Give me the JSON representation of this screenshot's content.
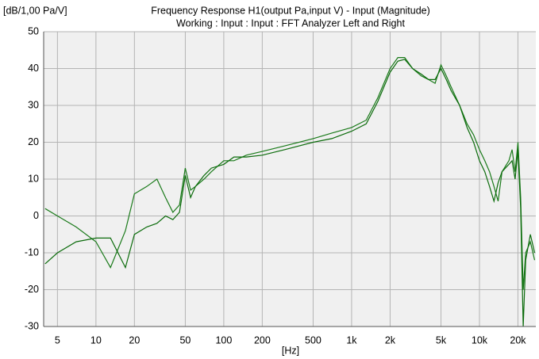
{
  "chart_data": {
    "type": "line",
    "title": "Frequency Response H1(output Pa,input V) - Input (Magnitude)",
    "subtitle": "Working : Input : Input : FFT Analyzer Left and Right",
    "y_label": "[dB/1,00 Pa/V]",
    "x_label": "[Hz]",
    "x_scale": "log",
    "grid": true,
    "xlim": [
      3.9,
      27600
    ],
    "ylim": [
      -30,
      50
    ],
    "xticks": [
      5,
      10,
      20,
      50,
      100,
      200,
      500,
      {
        "value": 1000,
        "label": "1k"
      },
      {
        "value": 2000,
        "label": "2k"
      },
      {
        "value": 5000,
        "label": "5k"
      },
      {
        "value": 10000,
        "label": "10k"
      },
      {
        "value": 20000,
        "label": "20k"
      }
    ],
    "yticks": [
      50,
      40,
      30,
      20,
      10,
      0,
      -10,
      -20,
      -30
    ],
    "x": [
      4,
      5,
      7,
      10,
      13,
      17,
      20,
      25,
      30,
      35,
      40,
      45,
      50,
      55,
      60,
      70,
      80,
      100,
      120,
      150,
      200,
      300,
      500,
      700,
      1000,
      1300,
      1600,
      2000,
      2300,
      2600,
      3000,
      3500,
      4000,
      4500,
      5000,
      5500,
      6000,
      7000,
      8000,
      9000,
      10000,
      11000,
      12000,
      13000,
      14000,
      15000,
      17000,
      18000,
      19000,
      20000,
      21000,
      22000,
      23000,
      25000,
      27000
    ],
    "series": [
      {
        "color": "#1a7a1a",
        "values": [
          2,
          0,
          -3,
          -7,
          -14,
          -4,
          6,
          8,
          10,
          5,
          1,
          3,
          13,
          7,
          8,
          10,
          12,
          15,
          15,
          16.5,
          17.5,
          19,
          21,
          22.5,
          24,
          26,
          32,
          40,
          43,
          43,
          40,
          38,
          37,
          36,
          41,
          38,
          35,
          30,
          25,
          22,
          18,
          15,
          12,
          8,
          4,
          12,
          15,
          18,
          12,
          20,
          5,
          -20,
          -10,
          -7,
          -12
        ]
      },
      {
        "color": "#0b6b0b",
        "values": [
          -13,
          -10,
          -7,
          -6,
          -6,
          -14,
          -5,
          -3,
          -2,
          0,
          -1,
          1,
          11,
          5,
          8,
          11,
          13,
          14,
          16,
          16,
          16.5,
          18,
          20,
          21,
          23,
          25,
          31,
          39,
          42,
          42.5,
          40,
          38.5,
          37,
          37,
          40,
          37,
          34,
          30,
          24,
          20,
          15,
          12,
          8,
          4,
          9,
          12,
          14,
          15,
          10,
          18,
          2,
          -30,
          -12,
          -5,
          -10
        ]
      }
    ]
  }
}
